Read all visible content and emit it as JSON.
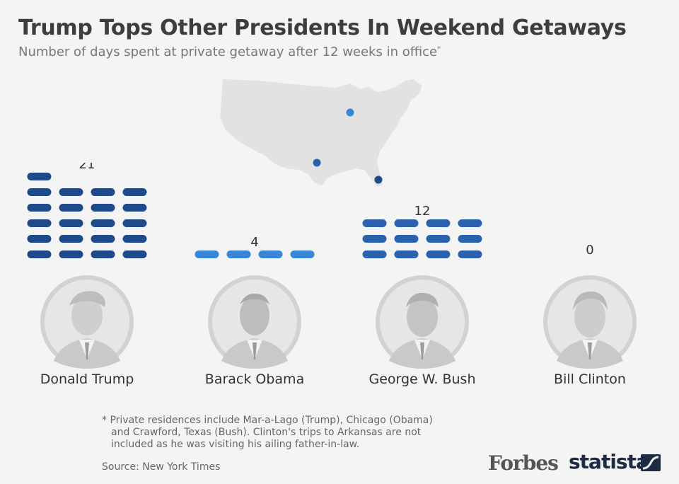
{
  "header": {
    "title": "Trump Tops Other Presidents In Weekend Getaways",
    "subtitle": "Number of days spent at private getaway after 12 weeks in office",
    "subtitle_marker": "*"
  },
  "chart_data": {
    "type": "bar",
    "title": "Trump Tops Other Presidents In Weekend Getaways",
    "subtitle": "Number of days spent at private getaway after 12 weeks in office*",
    "categories": [
      "Donald Trump",
      "Barack Obama",
      "George W. Bush",
      "Bill Clinton"
    ],
    "values": [
      21,
      4,
      12,
      0
    ],
    "series": [
      {
        "values": [
          21,
          4,
          12,
          0
        ]
      }
    ],
    "colors": [
      "#1f4a8a",
      "#3a86d6",
      "#2a62ad",
      "#2a62ad"
    ],
    "unit": "days"
  },
  "map": {
    "fill_color": "#e2e2e2",
    "marker_colors": [
      "#3a86d6",
      "#2a62ad",
      "#1f4a8a"
    ]
  },
  "footnote": {
    "lines": [
      "* Private residences include Mar-a-Lago (Trump), Chicago (Obama)",
      "and Crawford, Texas (Bush). Clinton's trips to Arkansas are not",
      "included as he was visiting his ailing father-in-law."
    ]
  },
  "source": "Source: New York Times",
  "logos": {
    "forbes": "Forbes",
    "statista": "statista"
  }
}
